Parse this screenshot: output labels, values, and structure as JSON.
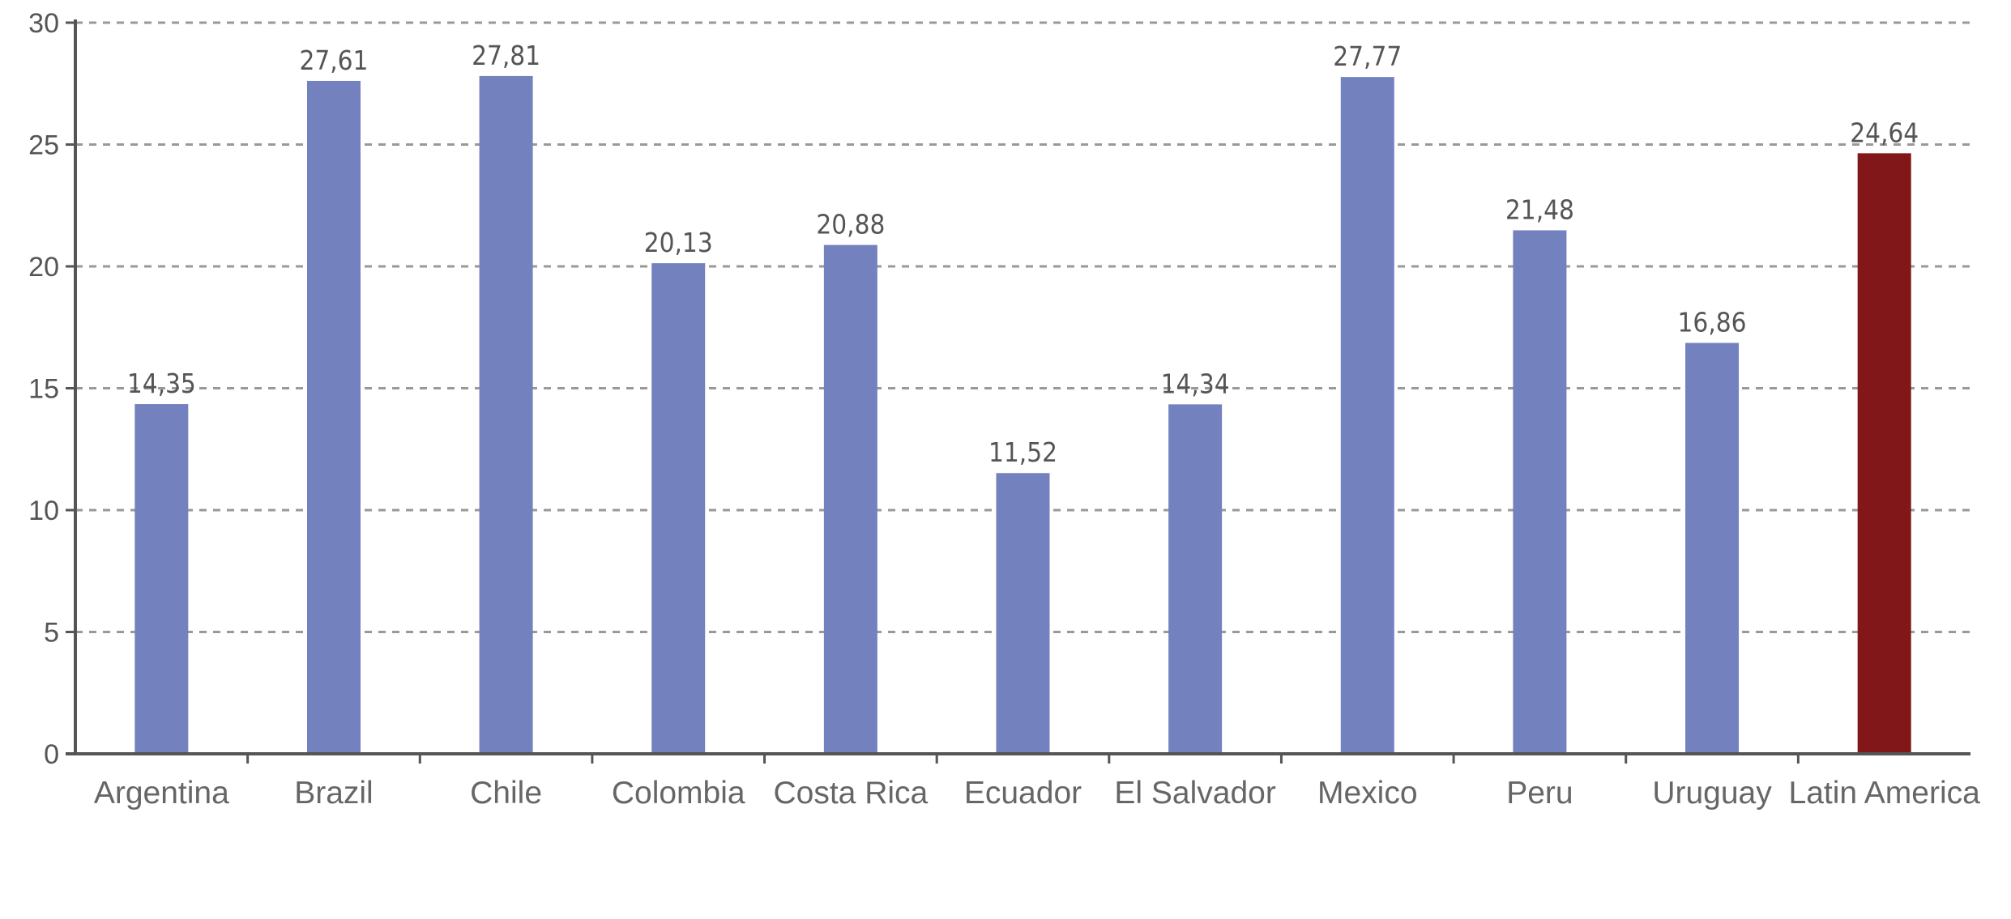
{
  "chart_data": {
    "type": "bar",
    "categories": [
      "Argentina",
      "Brazil",
      "Chile",
      "Colombia",
      "Costa Rica",
      "Ecuador",
      "El Salvador",
      "Mexico",
      "Peru",
      "Uruguay",
      "Latin America"
    ],
    "values": [
      14.35,
      27.61,
      27.81,
      20.13,
      20.88,
      11.52,
      14.34,
      27.77,
      21.48,
      16.86,
      24.64
    ],
    "value_labels": [
      "14,35",
      "27,61",
      "27,81",
      "20,13",
      "20,88",
      "11,52",
      "14,34",
      "27,77",
      "21,48",
      "16,86",
      "24,64"
    ],
    "highlight_index": 10,
    "title": "",
    "xlabel": "",
    "ylabel": "",
    "ylim": [
      0,
      30
    ],
    "yticks": [
      0,
      5,
      10,
      15,
      20,
      25,
      30
    ],
    "grid": true,
    "grid_style": "dashed",
    "legend": false,
    "colors": {
      "bar": "#7381BF",
      "highlight": "#821719",
      "grid": "#999999",
      "axis": "#555555"
    }
  }
}
